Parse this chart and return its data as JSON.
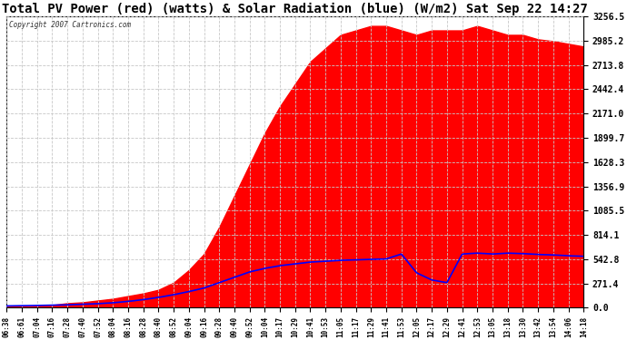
{
  "title": "Total PV Power (red) (watts) & Solar Radiation (blue) (W/m2) Sat Sep 22 14:27",
  "copyright_text": "Copyright 2007 Cartronics.com",
  "y_ticks": [
    0.0,
    271.4,
    542.8,
    814.1,
    1085.5,
    1356.9,
    1628.3,
    1899.7,
    2171.0,
    2442.4,
    2713.8,
    2985.2,
    3256.5
  ],
  "y_max": 3256.5,
  "y_min": 0.0,
  "background_color": "#ffffff",
  "plot_bg_color": "#ffffff",
  "grid_color": "#c8c8c8",
  "red_fill_color": "#ff0000",
  "blue_line_color": "#0000ff",
  "title_fontsize": 10,
  "x_labels": [
    "06:38",
    "06:61",
    "07:04",
    "07:16",
    "07:28",
    "07:40",
    "07:52",
    "08:04",
    "08:16",
    "08:28",
    "08:40",
    "08:52",
    "09:04",
    "09:16",
    "09:28",
    "09:40",
    "09:52",
    "10:04",
    "10:17",
    "10:29",
    "10:41",
    "10:53",
    "11:05",
    "11:17",
    "11:29",
    "11:41",
    "11:53",
    "12:05",
    "12:17",
    "12:29",
    "12:41",
    "12:53",
    "13:05",
    "13:18",
    "13:30",
    "13:42",
    "13:54",
    "14:06",
    "14:18"
  ],
  "pv_power": [
    10,
    15,
    20,
    30,
    50,
    60,
    80,
    100,
    130,
    160,
    200,
    280,
    420,
    600,
    900,
    1250,
    1600,
    1950,
    2250,
    2500,
    2750,
    2900,
    3050,
    3100,
    3150,
    3150,
    3100,
    3050,
    3100,
    3100,
    3100,
    3150,
    3100,
    3050,
    3050,
    3000,
    2980,
    2950,
    2920
  ],
  "solar_rad": [
    20,
    22,
    25,
    28,
    32,
    38,
    45,
    55,
    70,
    90,
    115,
    145,
    180,
    220,
    280,
    340,
    400,
    440,
    470,
    490,
    510,
    520,
    530,
    535,
    540,
    545,
    600,
    390,
    310,
    280,
    600,
    610,
    600,
    610,
    605,
    595,
    590,
    580,
    575
  ]
}
